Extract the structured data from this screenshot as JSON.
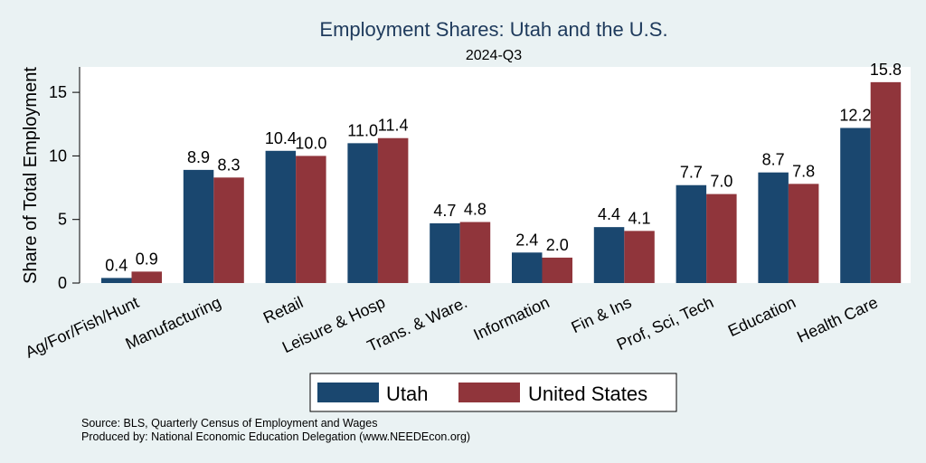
{
  "chart_data": {
    "type": "bar",
    "title": "Employment Shares: Utah and the U.S.",
    "subtitle": "2024-Q3",
    "ylabel": "Share of Total Employment",
    "xlabel": "",
    "ylim": [
      0,
      17
    ],
    "yticks": [
      0,
      5,
      10,
      15
    ],
    "grid": false,
    "legend_position": "bottom",
    "categories": [
      "Ag/For/Fish/Hunt",
      "Manufacturing",
      "Retail",
      "Leisure & Hosp",
      "Trans. & Ware.",
      "Information",
      "Fin & Ins",
      "Prof, Sci, Tech",
      "Education",
      "Health Care"
    ],
    "series": [
      {
        "name": "Utah",
        "color": "#1a476f",
        "values": [
          0.4,
          8.9,
          10.4,
          11.0,
          4.7,
          2.4,
          4.4,
          7.7,
          8.7,
          12.2
        ]
      },
      {
        "name": "United States",
        "color": "#90353b",
        "values": [
          0.9,
          8.3,
          10.0,
          11.4,
          4.8,
          2.0,
          4.1,
          7.0,
          7.8,
          15.8
        ]
      }
    ],
    "value_labels": [
      [
        "0.4",
        "8.9",
        "10.4",
        "11.0",
        "4.7",
        "2.4",
        "4.4",
        "7.7",
        "8.7",
        "12.2"
      ],
      [
        "0.9",
        "8.3",
        "10.0",
        "11.4",
        "4.8",
        "2.0",
        "4.1",
        "7.0",
        "7.8",
        "15.8"
      ]
    ]
  },
  "notes": {
    "source": "Source: BLS, Quarterly Census of Employment and Wages",
    "produced_by": "Produced by: National Economic Education Delegation (www.NEEDEcon.org)"
  }
}
